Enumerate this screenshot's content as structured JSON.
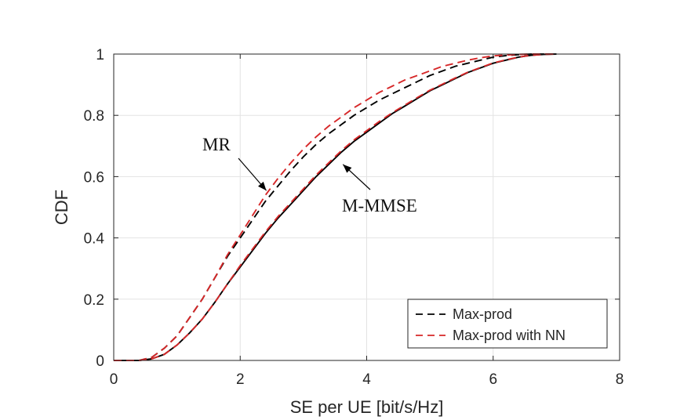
{
  "chart_data": {
    "type": "line",
    "xlabel": "SE per UE [bit/s/Hz]",
    "ylabel": "CDF",
    "xlim": [
      0,
      8
    ],
    "ylim": [
      0,
      1
    ],
    "xticks": [
      "0",
      "2",
      "4",
      "6",
      "8"
    ],
    "yticks": [
      "0",
      "0.2",
      "0.4",
      "0.6",
      "0.8",
      "1"
    ],
    "grid": true,
    "legend_position": "bottom-right",
    "legend": [
      "Max-prod",
      "Max-prod with NN"
    ],
    "annotations": [
      {
        "text": "MR",
        "points_to": [
          2.5,
          0.57
        ]
      },
      {
        "text": "M-MMSE",
        "points_to": [
          3.6,
          0.65
        ]
      }
    ],
    "series": [
      {
        "name": "Max-prod",
        "group": "MR",
        "color": "#000000",
        "style": "dashed",
        "x": [
          0,
          0.4,
          0.6,
          0.8,
          1.0,
          1.2,
          1.4,
          1.6,
          1.8,
          2.0,
          2.2,
          2.4,
          2.6,
          2.8,
          3.0,
          3.2,
          3.4,
          3.6,
          3.8,
          4.0,
          4.2,
          4.4,
          4.6,
          4.8,
          5.0,
          5.2,
          5.4,
          5.6,
          5.8,
          6.0,
          6.2,
          6.4,
          6.6,
          6.8,
          7.0
        ],
        "y": [
          0,
          0,
          0.01,
          0.04,
          0.08,
          0.14,
          0.2,
          0.27,
          0.34,
          0.4,
          0.46,
          0.52,
          0.57,
          0.62,
          0.665,
          0.705,
          0.74,
          0.77,
          0.8,
          0.825,
          0.85,
          0.87,
          0.89,
          0.91,
          0.93,
          0.945,
          0.96,
          0.97,
          0.98,
          0.99,
          0.995,
          0.998,
          1.0,
          1.0,
          1.0
        ]
      },
      {
        "name": "Max-prod with NN",
        "group": "MR",
        "color": "#d62728",
        "style": "dashed",
        "x": [
          0,
          0.4,
          0.6,
          0.8,
          1.0,
          1.2,
          1.4,
          1.6,
          1.8,
          2.0,
          2.2,
          2.4,
          2.6,
          2.8,
          3.0,
          3.2,
          3.4,
          3.6,
          3.8,
          4.0,
          4.2,
          4.4,
          4.6,
          4.8,
          5.0,
          5.2,
          5.4,
          5.6,
          5.8,
          6.0,
          6.2,
          6.4,
          6.6,
          6.8,
          7.0
        ],
        "y": [
          0,
          0,
          0.01,
          0.04,
          0.08,
          0.14,
          0.2,
          0.27,
          0.345,
          0.41,
          0.475,
          0.54,
          0.595,
          0.645,
          0.69,
          0.73,
          0.765,
          0.795,
          0.825,
          0.85,
          0.875,
          0.895,
          0.915,
          0.93,
          0.945,
          0.96,
          0.97,
          0.98,
          0.988,
          0.994,
          0.997,
          0.999,
          1.0,
          1.0,
          1.0
        ]
      },
      {
        "name": "Max-prod",
        "group": "M-MMSE",
        "color": "#000000",
        "style": "solid",
        "x": [
          0,
          0.4,
          0.6,
          0.8,
          1.0,
          1.2,
          1.4,
          1.6,
          1.8,
          2.0,
          2.2,
          2.4,
          2.6,
          2.8,
          3.0,
          3.2,
          3.4,
          3.6,
          3.8,
          4.0,
          4.2,
          4.4,
          4.6,
          4.8,
          5.0,
          5.2,
          5.4,
          5.6,
          5.8,
          6.0,
          6.2,
          6.4,
          6.6,
          6.8,
          7.0
        ],
        "y": [
          0,
          0,
          0.005,
          0.02,
          0.05,
          0.09,
          0.135,
          0.19,
          0.25,
          0.305,
          0.36,
          0.415,
          0.465,
          0.51,
          0.555,
          0.6,
          0.64,
          0.68,
          0.715,
          0.745,
          0.775,
          0.805,
          0.83,
          0.855,
          0.88,
          0.9,
          0.92,
          0.94,
          0.955,
          0.97,
          0.98,
          0.99,
          0.996,
          0.999,
          1.0
        ]
      },
      {
        "name": "Max-prod with NN",
        "group": "M-MMSE",
        "color": "#d62728",
        "style": "dashed",
        "x": [
          0,
          0.4,
          0.6,
          0.8,
          1.0,
          1.2,
          1.4,
          1.6,
          1.8,
          2.0,
          2.2,
          2.4,
          2.6,
          2.8,
          3.0,
          3.2,
          3.4,
          3.6,
          3.8,
          4.0,
          4.2,
          4.4,
          4.6,
          4.8,
          5.0,
          5.2,
          5.4,
          5.6,
          5.8,
          6.0,
          6.2,
          6.4,
          6.6,
          6.8,
          7.0
        ],
        "y": [
          0,
          0,
          0.005,
          0.02,
          0.05,
          0.09,
          0.135,
          0.19,
          0.25,
          0.31,
          0.365,
          0.42,
          0.47,
          0.515,
          0.56,
          0.605,
          0.645,
          0.685,
          0.72,
          0.75,
          0.78,
          0.808,
          0.833,
          0.858,
          0.882,
          0.902,
          0.922,
          0.941,
          0.956,
          0.971,
          0.981,
          0.99,
          0.996,
          0.999,
          1.0
        ]
      }
    ]
  }
}
